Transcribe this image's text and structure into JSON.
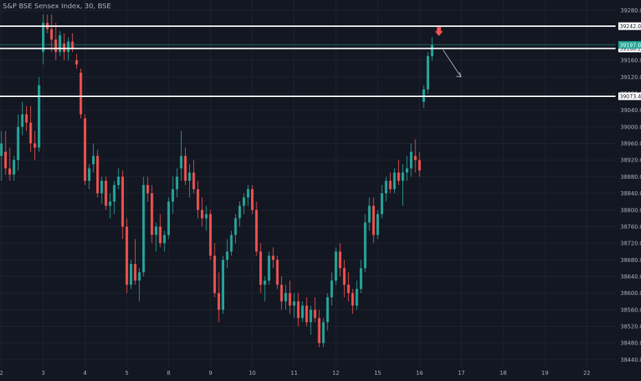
{
  "header": {
    "title": "S&P BSE Sensex Index, 30, BSE"
  },
  "chart_data": {
    "type": "candlestick",
    "title": "S&P BSE Sensex Index, 30, BSE",
    "ylim": [
      38420,
      39305
    ],
    "price_axis_ticks": [
      39280,
      39240,
      39200,
      39160,
      39120,
      39080,
      39040,
      39000,
      38960,
      38920,
      38880,
      38840,
      38800,
      38760,
      38720,
      38680,
      38640,
      38600,
      38560,
      38520,
      38480,
      38440
    ],
    "time_axis_ticks": [
      {
        "label": "2",
        "index": 0
      },
      {
        "label": "3",
        "index": 10
      },
      {
        "label": "4",
        "index": 20
      },
      {
        "label": "5",
        "index": 30
      },
      {
        "label": "8",
        "index": 40
      },
      {
        "label": "9",
        "index": 50
      },
      {
        "label": "10",
        "index": 60
      },
      {
        "label": "11",
        "index": 70
      },
      {
        "label": "12",
        "index": 80
      },
      {
        "label": "15",
        "index": 90
      },
      {
        "label": "16",
        "index": 100
      },
      {
        "label": "17",
        "index": 110
      },
      {
        "label": "18",
        "index": 120
      },
      {
        "label": "19",
        "index": 130
      },
      {
        "label": "22",
        "index": 140
      }
    ],
    "horizontal_levels": [
      {
        "price": 39242.04,
        "label": "39242.04"
      },
      {
        "price": 39188.29,
        "label": "39188.29"
      },
      {
        "price": 39073.46,
        "label": "39073.46"
      }
    ],
    "last_price": {
      "price": 39197.04,
      "label": "39197.04"
    },
    "candles": [
      {
        "o": 38930,
        "h": 38990,
        "l": 38870,
        "c": 38960
      },
      {
        "o": 38940,
        "h": 38990,
        "l": 38885,
        "c": 38900
      },
      {
        "o": 38900,
        "h": 38950,
        "l": 38870,
        "c": 38885
      },
      {
        "o": 38885,
        "h": 38930,
        "l": 38870,
        "c": 38920
      },
      {
        "o": 38920,
        "h": 39030,
        "l": 38895,
        "c": 39000
      },
      {
        "o": 39000,
        "h": 39060,
        "l": 38980,
        "c": 39030
      },
      {
        "o": 39030,
        "h": 39050,
        "l": 38990,
        "c": 39010
      },
      {
        "o": 39010,
        "h": 39050,
        "l": 38940,
        "c": 38960
      },
      {
        "o": 38960,
        "h": 38990,
        "l": 38920,
        "c": 38950
      },
      {
        "o": 38950,
        "h": 39120,
        "l": 38940,
        "c": 39100
      },
      {
        "o": 39180,
        "h": 39270,
        "l": 39150,
        "c": 39250
      },
      {
        "o": 39250,
        "h": 39270,
        "l": 39225,
        "c": 39235
      },
      {
        "o": 39235,
        "h": 39270,
        "l": 39180,
        "c": 39210
      },
      {
        "o": 39210,
        "h": 39250,
        "l": 39160,
        "c": 39180
      },
      {
        "o": 39180,
        "h": 39230,
        "l": 39170,
        "c": 39220
      },
      {
        "o": 39200,
        "h": 39225,
        "l": 39160,
        "c": 39180
      },
      {
        "o": 39180,
        "h": 39215,
        "l": 39160,
        "c": 39205
      },
      {
        "o": 39205,
        "h": 39225,
        "l": 39180,
        "c": 39190
      },
      {
        "o": 39160,
        "h": 39175,
        "l": 39140,
        "c": 39150
      },
      {
        "o": 39130,
        "h": 39140,
        "l": 39020,
        "c": 39030
      },
      {
        "o": 39020,
        "h": 39030,
        "l": 38860,
        "c": 38870
      },
      {
        "o": 38870,
        "h": 38910,
        "l": 38850,
        "c": 38900
      },
      {
        "o": 38910,
        "h": 38960,
        "l": 38890,
        "c": 38930
      },
      {
        "o": 38930,
        "h": 38945,
        "l": 38830,
        "c": 38840
      },
      {
        "o": 38840,
        "h": 38880,
        "l": 38815,
        "c": 38870
      },
      {
        "o": 38870,
        "h": 38880,
        "l": 38800,
        "c": 38810
      },
      {
        "o": 38810,
        "h": 38840,
        "l": 38780,
        "c": 38820
      },
      {
        "o": 38820,
        "h": 38870,
        "l": 38790,
        "c": 38860
      },
      {
        "o": 38860,
        "h": 38900,
        "l": 38850,
        "c": 38880
      },
      {
        "o": 38880,
        "h": 38895,
        "l": 38730,
        "c": 38760
      },
      {
        "o": 38760,
        "h": 38780,
        "l": 38600,
        "c": 38620
      },
      {
        "o": 38620,
        "h": 38680,
        "l": 38610,
        "c": 38670
      },
      {
        "o": 38670,
        "h": 38730,
        "l": 38620,
        "c": 38630
      },
      {
        "o": 38630,
        "h": 38660,
        "l": 38580,
        "c": 38650
      },
      {
        "o": 38650,
        "h": 38880,
        "l": 38640,
        "c": 38860
      },
      {
        "o": 38860,
        "h": 38880,
        "l": 38820,
        "c": 38840
      },
      {
        "o": 38840,
        "h": 38860,
        "l": 38720,
        "c": 38740
      },
      {
        "o": 38740,
        "h": 38770,
        "l": 38700,
        "c": 38760
      },
      {
        "o": 38760,
        "h": 38790,
        "l": 38710,
        "c": 38720
      },
      {
        "o": 38720,
        "h": 38750,
        "l": 38700,
        "c": 38740
      },
      {
        "o": 38740,
        "h": 38830,
        "l": 38730,
        "c": 38820
      },
      {
        "o": 38820,
        "h": 38880,
        "l": 38790,
        "c": 38850
      },
      {
        "o": 38850,
        "h": 38900,
        "l": 38830,
        "c": 38880
      },
      {
        "o": 38900,
        "h": 38990,
        "l": 38870,
        "c": 38930
      },
      {
        "o": 38930,
        "h": 38950,
        "l": 38860,
        "c": 38870
      },
      {
        "o": 38870,
        "h": 38910,
        "l": 38830,
        "c": 38890
      },
      {
        "o": 38890,
        "h": 38920,
        "l": 38840,
        "c": 38850
      },
      {
        "o": 38850,
        "h": 38870,
        "l": 38780,
        "c": 38800
      },
      {
        "o": 38800,
        "h": 38830,
        "l": 38760,
        "c": 38780
      },
      {
        "o": 38780,
        "h": 38810,
        "l": 38750,
        "c": 38790
      },
      {
        "o": 38790,
        "h": 38800,
        "l": 38680,
        "c": 38690
      },
      {
        "o": 38690,
        "h": 38720,
        "l": 38590,
        "c": 38600
      },
      {
        "o": 38600,
        "h": 38650,
        "l": 38530,
        "c": 38560
      },
      {
        "o": 38560,
        "h": 38690,
        "l": 38550,
        "c": 38680
      },
      {
        "o": 38680,
        "h": 38730,
        "l": 38660,
        "c": 38700
      },
      {
        "o": 38700,
        "h": 38750,
        "l": 38690,
        "c": 38740
      },
      {
        "o": 38740,
        "h": 38790,
        "l": 38720,
        "c": 38780
      },
      {
        "o": 38780,
        "h": 38820,
        "l": 38760,
        "c": 38810
      },
      {
        "o": 38810,
        "h": 38840,
        "l": 38790,
        "c": 38830
      },
      {
        "o": 38830,
        "h": 38860,
        "l": 38810,
        "c": 38850
      },
      {
        "o": 38850,
        "h": 38860,
        "l": 38790,
        "c": 38800
      },
      {
        "o": 38800,
        "h": 38820,
        "l": 38690,
        "c": 38700
      },
      {
        "o": 38700,
        "h": 38720,
        "l": 38600,
        "c": 38620
      },
      {
        "o": 38620,
        "h": 38640,
        "l": 38580,
        "c": 38630
      },
      {
        "o": 38630,
        "h": 38700,
        "l": 38620,
        "c": 38690
      },
      {
        "o": 38690,
        "h": 38710,
        "l": 38660,
        "c": 38680
      },
      {
        "o": 38680,
        "h": 38690,
        "l": 38610,
        "c": 38620
      },
      {
        "o": 38620,
        "h": 38640,
        "l": 38560,
        "c": 38580
      },
      {
        "o": 38580,
        "h": 38620,
        "l": 38560,
        "c": 38600
      },
      {
        "o": 38600,
        "h": 38630,
        "l": 38550,
        "c": 38570
      },
      {
        "o": 38570,
        "h": 38600,
        "l": 38540,
        "c": 38580
      },
      {
        "o": 38580,
        "h": 38600,
        "l": 38520,
        "c": 38540
      },
      {
        "o": 38540,
        "h": 38580,
        "l": 38530,
        "c": 38570
      },
      {
        "o": 38570,
        "h": 38590,
        "l": 38520,
        "c": 38530
      },
      {
        "o": 38530,
        "h": 38570,
        "l": 38500,
        "c": 38560
      },
      {
        "o": 38560,
        "h": 38590,
        "l": 38530,
        "c": 38540
      },
      {
        "o": 38540,
        "h": 38560,
        "l": 38470,
        "c": 38480
      },
      {
        "o": 38480,
        "h": 38540,
        "l": 38470,
        "c": 38530
      },
      {
        "o": 38530,
        "h": 38600,
        "l": 38510,
        "c": 38590
      },
      {
        "o": 38590,
        "h": 38650,
        "l": 38570,
        "c": 38630
      },
      {
        "o": 38630,
        "h": 38710,
        "l": 38620,
        "c": 38700
      },
      {
        "o": 38700,
        "h": 38720,
        "l": 38640,
        "c": 38660
      },
      {
        "o": 38660,
        "h": 38680,
        "l": 38590,
        "c": 38620
      },
      {
        "o": 38620,
        "h": 38650,
        "l": 38580,
        "c": 38600
      },
      {
        "o": 38600,
        "h": 38610,
        "l": 38550,
        "c": 38570
      },
      {
        "o": 38570,
        "h": 38630,
        "l": 38560,
        "c": 38610
      },
      {
        "o": 38610,
        "h": 38680,
        "l": 38600,
        "c": 38660
      },
      {
        "o": 38660,
        "h": 38790,
        "l": 38650,
        "c": 38770
      },
      {
        "o": 38770,
        "h": 38830,
        "l": 38750,
        "c": 38810
      },
      {
        "o": 38810,
        "h": 38830,
        "l": 38720,
        "c": 38740
      },
      {
        "o": 38740,
        "h": 38800,
        "l": 38730,
        "c": 38790
      },
      {
        "o": 38790,
        "h": 38860,
        "l": 38780,
        "c": 38840
      },
      {
        "o": 38840,
        "h": 38880,
        "l": 38820,
        "c": 38870
      },
      {
        "o": 38870,
        "h": 38890,
        "l": 38840,
        "c": 38850
      },
      {
        "o": 38850,
        "h": 38900,
        "l": 38840,
        "c": 38890
      },
      {
        "o": 38890,
        "h": 38920,
        "l": 38860,
        "c": 38870
      },
      {
        "o": 38870,
        "h": 38910,
        "l": 38810,
        "c": 38890
      },
      {
        "o": 38890,
        "h": 38930,
        "l": 38870,
        "c": 38900
      },
      {
        "o": 38900,
        "h": 38960,
        "l": 38880,
        "c": 38940
      },
      {
        "o": 38930,
        "h": 38970,
        "l": 38890,
        "c": 38920
      },
      {
        "o": 38920,
        "h": 38940,
        "l": 38880,
        "c": 38895
      },
      {
        "o": 39060,
        "h": 39100,
        "l": 39045,
        "c": 39090
      },
      {
        "o": 39090,
        "h": 39180,
        "l": 39080,
        "c": 39170
      },
      {
        "o": 39170,
        "h": 39215,
        "l": 39160,
        "c": 39197
      }
    ]
  },
  "colors": {
    "background": "#131722",
    "grid": "#1f2430",
    "up": "#26a69a",
    "down": "#ef5350",
    "level_line": "#ffffff",
    "axis_text": "#b2b5be",
    "arrow": "#b2b5be",
    "marker": "#ef5350"
  }
}
